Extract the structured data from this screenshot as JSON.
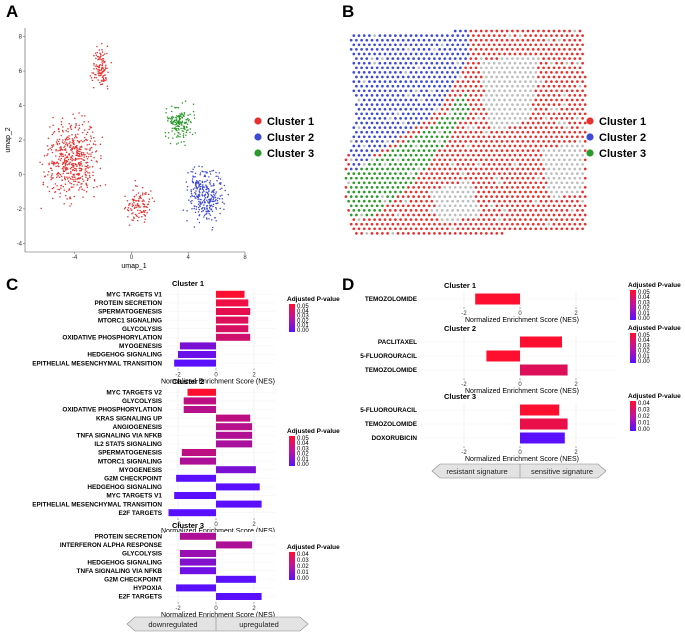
{
  "panels": {
    "a": {
      "letter": "A"
    },
    "b": {
      "letter": "B"
    },
    "c": {
      "letter": "C"
    },
    "d": {
      "letter": "D"
    }
  },
  "colors": {
    "cluster1": "#e8312f",
    "cluster2": "#3d4ad6",
    "cluster3": "#2a9a2a",
    "grey": "#bdbdbd",
    "pval_low": "#ff0f2f",
    "pval_high": "#5a10ff"
  },
  "umap_legend": [
    {
      "label": "Cluster 1",
      "color_key": "cluster1"
    },
    {
      "label": "Cluster 2",
      "color_key": "cluster2"
    },
    {
      "label": "Cluster 3",
      "color_key": "cluster3"
    }
  ],
  "spatial_legend": [
    {
      "label": "Cluster 1",
      "color_key": "cluster1"
    },
    {
      "label": "Cluster 2",
      "color_key": "cluster2"
    },
    {
      "label": "Cluster 3",
      "color_key": "cluster3"
    }
  ],
  "arrow_c": {
    "left": "downregulated",
    "right": "upregulated"
  },
  "arrow_d": {
    "left": "resistant signature",
    "right": "sensitive signature"
  },
  "chart_data": [
    {
      "id": "umap",
      "type": "scatter",
      "xlabel": "umap_1",
      "ylabel": "umap_2",
      "xlim": [
        -7.5,
        8
      ],
      "ylim": [
        -4.5,
        8.5
      ],
      "xticks": [
        -4,
        0,
        4,
        8
      ],
      "yticks": [
        -4,
        -2,
        0,
        2,
        4,
        6,
        8
      ],
      "series": [
        {
          "name": "Cluster 1",
          "region": "left lobe and lower-left cells"
        },
        {
          "name": "Cluster 2",
          "region": "lower-right lobe"
        },
        {
          "name": "Cluster 3",
          "region": "upper-right lobe"
        }
      ]
    },
    {
      "id": "gsea_clusters",
      "type": "bar",
      "orientation": "horizontal",
      "xlabel": "Normalized Enrichment Score (NES)",
      "xticks": [
        -2,
        0,
        2
      ],
      "colorbar_title": "Adjusted P-value",
      "groups": [
        {
          "title": "Cluster 1",
          "colorbar_ticks": [
            "0.05",
            "0.04",
            "0.03",
            "0.02",
            "0.01",
            "0.00"
          ],
          "pmax": 0.05,
          "terms": [
            {
              "term": "MYC TARGETS V1",
              "nes": 1.5,
              "padj": 0.0
            },
            {
              "term": "PROTEIN SECRETION",
              "nes": 1.7,
              "padj": 0.005
            },
            {
              "term": "SPERMATOGENESIS",
              "nes": 1.8,
              "padj": 0.008
            },
            {
              "term": "MTORC1 SIGNALING",
              "nes": 1.7,
              "padj": 0.01
            },
            {
              "term": "GLYCOLYSIS",
              "nes": 1.7,
              "padj": 0.012
            },
            {
              "term": "OXIDATIVE PHOSPHORYLATION",
              "nes": 1.8,
              "padj": 0.015
            },
            {
              "term": "MYOGENESIS",
              "nes": -1.9,
              "padj": 0.04
            },
            {
              "term": "HEDGEHOG SIGNALING",
              "nes": -2.0,
              "padj": 0.045
            },
            {
              "term": "EPITHELIAL MESENCHYMAL TRANSITION",
              "nes": -2.2,
              "padj": 0.05
            }
          ]
        },
        {
          "title": "Cluster 2",
          "colorbar_ticks": [
            "0.05",
            "0.04",
            "0.03",
            "0.02",
            "0.01",
            "0.00"
          ],
          "pmax": 0.05,
          "terms": [
            {
              "term": "MYC TARGETS V2",
              "nes": -1.5,
              "padj": 0.0
            },
            {
              "term": "GLYCOLYSIS",
              "nes": -1.7,
              "padj": 0.02
            },
            {
              "term": "OXIDATIVE PHOSPHORYLATION",
              "nes": -1.7,
              "padj": 0.022
            },
            {
              "term": "KRAS SIGNALING UP",
              "nes": 1.8,
              "padj": 0.02
            },
            {
              "term": "ANGIOGENESIS",
              "nes": 1.9,
              "padj": 0.022
            },
            {
              "term": "TNFA SIGNALING VIA NFKB",
              "nes": 1.9,
              "padj": 0.024
            },
            {
              "term": "IL2 STAT5 SIGNALING",
              "nes": 1.9,
              "padj": 0.026
            },
            {
              "term": "SPERMATOGENESIS",
              "nes": -1.8,
              "padj": 0.02
            },
            {
              "term": "MTORC1 SIGNALING",
              "nes": -1.9,
              "padj": 0.025
            },
            {
              "term": "MYOGENESIS",
              "nes": 2.1,
              "padj": 0.04
            },
            {
              "term": "G2M CHECKPOINT",
              "nes": -2.1,
              "padj": 0.05
            },
            {
              "term": "HEDGEHOG SIGNALING",
              "nes": 2.3,
              "padj": 0.05
            },
            {
              "term": "MYC TARGETS V1",
              "nes": -2.2,
              "padj": 0.05
            },
            {
              "term": "EPITHELIAL MESENCHYMAL TRANSITION",
              "nes": 2.4,
              "padj": 0.05
            },
            {
              "term": "E2F TARGETS",
              "nes": -2.5,
              "padj": 0.05
            }
          ]
        },
        {
          "title": "Cluster 3",
          "colorbar_ticks": [
            "0.04",
            "0.03",
            "0.02",
            "0.01",
            "0.00"
          ],
          "pmax": 0.04,
          "terms": [
            {
              "term": "PROTEIN SECRETION",
              "nes": -1.9,
              "padj": 0.02
            },
            {
              "term": "INTERFERON ALPHA RESPONSE",
              "nes": 1.9,
              "padj": 0.02
            },
            {
              "term": "GLYCOLYSIS",
              "nes": -1.9,
              "padj": 0.025
            },
            {
              "term": "HEDGEHOG SIGNALING",
              "nes": -1.9,
              "padj": 0.03
            },
            {
              "term": "TNFA SIGNALING VIA NFKB",
              "nes": -1.9,
              "padj": 0.035
            },
            {
              "term": "G2M CHECKPOINT",
              "nes": 2.1,
              "padj": 0.04
            },
            {
              "term": "HYPOXIA",
              "nes": -2.1,
              "padj": 0.04
            },
            {
              "term": "E2F TARGETS",
              "nes": 2.4,
              "padj": 0.04
            }
          ]
        }
      ]
    },
    {
      "id": "drug_signatures",
      "type": "bar",
      "orientation": "horizontal",
      "xlabel": "Normalized Enrichment Score (NES)",
      "xticks": [
        -2,
        0,
        2
      ],
      "colorbar_title": "Adjusted P-value",
      "groups": [
        {
          "title": "Cluster 1",
          "colorbar_ticks": [
            "0.05",
            "0.04",
            "0.03",
            "0.02",
            "0.01",
            "0.00"
          ],
          "pmax": 0.05,
          "terms": [
            {
              "term": "TEMOZOLOMIDE",
              "nes": -1.6,
              "padj": 0.0
            }
          ]
        },
        {
          "title": "Cluster 2",
          "colorbar_ticks": [
            "0.05",
            "0.04",
            "0.03",
            "0.02",
            "0.01",
            "0.00"
          ],
          "pmax": 0.05,
          "terms": [
            {
              "term": "PACLITAXEL",
              "nes": 1.5,
              "padj": 0.0
            },
            {
              "term": "5-FLUOROURACIL",
              "nes": -1.2,
              "padj": 0.0
            },
            {
              "term": "TEMOZOLOMIDE",
              "nes": 1.7,
              "padj": 0.01
            }
          ]
        },
        {
          "title": "Cluster 3",
          "colorbar_ticks": [
            "0.04",
            "0.03",
            "0.02",
            "0.01",
            "0.00"
          ],
          "pmax": 0.04,
          "terms": [
            {
              "term": "5-FLUOROURACIL",
              "nes": 1.4,
              "padj": 0.0
            },
            {
              "term": "TEMOZOLOMIDE",
              "nes": 1.7,
              "padj": 0.005
            },
            {
              "term": "DOXORUBICIN",
              "nes": 1.6,
              "padj": 0.04
            }
          ]
        }
      ]
    }
  ]
}
